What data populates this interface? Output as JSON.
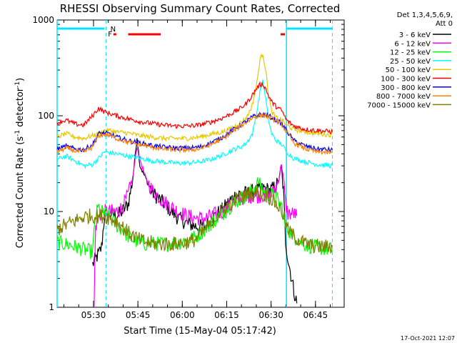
{
  "chart_data": {
    "type": "line",
    "title": "RHESSI Observing Summary Count Rates, Corrected",
    "xlabel": "Start Time (15-May-04 05:17:42)",
    "ylabel_main": "Corrected Count Rate (s",
    "ylabel_sup1": "-1",
    "ylabel_mid": " detector",
    "ylabel_sup2": "-1",
    "ylabel_end": ")",
    "footer_timestamp": "17-Oct-2021 12:07",
    "y_scale": "log",
    "ylim": [
      1,
      1000
    ],
    "xlim_minutes": [
      0,
      97
    ],
    "y_ticks": [
      {
        "v": 1,
        "label": "1"
      },
      {
        "v": 10,
        "label": "10"
      },
      {
        "v": 100,
        "label": "100"
      },
      {
        "v": 1000,
        "label": "1000"
      }
    ],
    "x_ticks": [
      {
        "t": 12.3,
        "label": "05:30"
      },
      {
        "t": 27.3,
        "label": "05:45"
      },
      {
        "t": 42.3,
        "label": "06:00"
      },
      {
        "t": 57.3,
        "label": "06:15"
      },
      {
        "t": 72.3,
        "label": "06:30"
      },
      {
        "t": 87.3,
        "label": "06:45"
      }
    ],
    "legend_header": [
      "Det 1,3,4,5,6,9,",
      "Att 0"
    ],
    "legend_position": "right",
    "flags": [
      {
        "label": "N",
        "color": "#00c8ff",
        "t": 18.0
      },
      {
        "label": "F",
        "color": "#ff0000",
        "t": 17.2
      }
    ],
    "cyan_bars": [
      [
        0,
        16
      ],
      [
        77.5,
        93
      ]
    ],
    "red_bars": [
      [
        19,
        20
      ],
      [
        24,
        35
      ],
      [
        75.5,
        77
      ]
    ],
    "solid_lines": [
      0,
      77.5
    ],
    "dashed_lines": [
      16.5,
      93
    ],
    "series": [
      {
        "name": "3 - 6 keV",
        "color": "#000000",
        "x": [
          12,
          13,
          14,
          15,
          16,
          18,
          20,
          22,
          24,
          25.5,
          27,
          28,
          30,
          32,
          35,
          38,
          41,
          44,
          47,
          50,
          52,
          54,
          56,
          58,
          60,
          62,
          64,
          66,
          68,
          70,
          72,
          73,
          74,
          75,
          75.8,
          76.5,
          77.2,
          78,
          79,
          80,
          81
        ],
        "y": [
          2.8,
          3.2,
          3.6,
          4.2,
          9,
          9.5,
          9.0,
          10,
          12,
          21,
          60,
          30,
          22,
          16,
          13,
          10.5,
          8.5,
          7.5,
          7.0,
          7.0,
          8.0,
          9.5,
          10.5,
          12.5,
          14.5,
          15.5,
          15.5,
          16.0,
          16.5,
          17.5,
          16.5,
          17.5,
          18.5,
          22,
          30,
          16,
          5,
          3.2,
          2.2,
          1.5,
          1.1
        ]
      },
      {
        "name": "6 - 12 keV",
        "color": "#ff00ff",
        "x": [
          12.5,
          13,
          14,
          15,
          16,
          18,
          20,
          22,
          24,
          25.5,
          27,
          28,
          30,
          32,
          35,
          38,
          41,
          44,
          47,
          50,
          52,
          54,
          56,
          58,
          60,
          62,
          64,
          66,
          68,
          70,
          72,
          73,
          74,
          75,
          75.8,
          76.5,
          77.2,
          78,
          79,
          80,
          81
        ],
        "y": [
          1.0,
          7,
          8.5,
          9.5,
          10,
          10,
          10,
          11,
          15,
          22,
          48,
          35,
          22,
          17,
          13.5,
          11.5,
          10,
          9,
          8.5,
          8.5,
          9,
          9.5,
          10,
          11,
          12.5,
          13.5,
          14.5,
          14.5,
          14.5,
          15,
          15,
          16,
          18,
          22,
          32,
          22,
          12,
          9.5,
          9.5,
          9.5,
          9.0
        ]
      },
      {
        "name": "12 - 25 keV",
        "color": "#00ff00",
        "x": [
          0,
          2,
          4,
          6,
          8,
          10,
          12,
          13,
          14,
          15,
          16,
          18,
          20,
          22,
          24,
          26,
          28,
          30,
          32,
          34,
          36,
          38,
          40,
          42,
          44,
          46,
          48,
          50,
          52,
          54,
          56,
          58,
          60,
          62,
          64,
          66,
          68,
          70,
          72,
          74,
          76,
          77,
          78,
          79,
          80,
          82,
          84,
          86,
          88,
          90,
          93
        ],
        "y": [
          4.8,
          4.6,
          4.5,
          4.3,
          4.1,
          3.9,
          3.8,
          9,
          11,
          10,
          9.5,
          8.5,
          7.2,
          6.5,
          5.5,
          5.0,
          4.8,
          4.6,
          4.6,
          4.6,
          4.6,
          4.6,
          4.7,
          4.8,
          5.0,
          5.3,
          5.8,
          6.5,
          7.5,
          8.5,
          9.5,
          11,
          12.5,
          13.5,
          15,
          17,
          20,
          16,
          15,
          14,
          11,
          7,
          6.5,
          6,
          5.5,
          5,
          4.5,
          4.3,
          4.2,
          4.1,
          4.0
        ]
      },
      {
        "name": "25 - 50 keV",
        "color": "#00ffff",
        "x": [
          0,
          3,
          6,
          9,
          12,
          14,
          16,
          18,
          20,
          24,
          28,
          32,
          36,
          40,
          44,
          48,
          52,
          56,
          58,
          60,
          62,
          64,
          66,
          67.5,
          68.5,
          69.5,
          70.5,
          71.5,
          72.5,
          74,
          76,
          77.5,
          80,
          84,
          88,
          93
        ],
        "y": [
          35,
          38,
          34,
          30,
          31,
          36,
          42,
          41,
          40,
          38,
          36,
          34,
          33,
          32,
          32,
          33,
          35,
          39,
          42,
          45,
          47,
          52,
          65,
          110,
          175,
          235,
          150,
          88,
          65,
          55,
          50,
          42,
          36,
          33,
          31,
          30
        ]
      },
      {
        "name": "50 - 100 keV",
        "color": "#e6c800",
        "x": [
          0,
          3,
          6,
          9,
          12,
          14,
          16,
          18,
          20,
          24,
          28,
          32,
          36,
          40,
          44,
          48,
          52,
          56,
          58,
          60,
          62,
          64,
          66,
          67.5,
          68.5,
          69.5,
          70.5,
          71.5,
          72.5,
          74,
          76,
          77.5,
          80,
          84,
          88,
          93
        ],
        "y": [
          60,
          65,
          60,
          58,
          62,
          65,
          70,
          70,
          68,
          66,
          62,
          60,
          58,
          58,
          58,
          60,
          64,
          68,
          72,
          78,
          85,
          95,
          130,
          220,
          380,
          450,
          300,
          160,
          110,
          95,
          90,
          80,
          72,
          68,
          65,
          63
        ]
      },
      {
        "name": "100 - 300 keV",
        "color": "#ff0000",
        "x": [
          0,
          3,
          6,
          9,
          12,
          14,
          16,
          18,
          20,
          24,
          28,
          32,
          36,
          40,
          44,
          48,
          52,
          56,
          58,
          60,
          62,
          64,
          66,
          67.5,
          68.5,
          69.5,
          70.5,
          71.5,
          72.5,
          74,
          76,
          77.5,
          80,
          84,
          88,
          93
        ],
        "y": [
          85,
          90,
          82,
          80,
          100,
          120,
          110,
          105,
          100,
          93,
          87,
          83,
          80,
          78,
          78,
          80,
          86,
          95,
          102,
          110,
          120,
          135,
          165,
          195,
          210,
          215,
          190,
          160,
          140,
          125,
          112,
          90,
          78,
          72,
          70,
          68
        ]
      },
      {
        "name": "300 - 800 keV",
        "color": "#0000ff",
        "x": [
          0,
          3,
          6,
          9,
          12,
          14,
          16,
          18,
          20,
          24,
          28,
          32,
          36,
          40,
          44,
          48,
          52,
          56,
          58,
          60,
          62,
          64,
          66,
          68,
          70,
          72,
          74,
          76,
          77.5,
          80,
          84,
          88,
          93
        ],
        "y": [
          45,
          48,
          45,
          44,
          50,
          65,
          66,
          64,
          60,
          55,
          52,
          49,
          47,
          46,
          46,
          47,
          52,
          60,
          66,
          73,
          80,
          88,
          97,
          102,
          103,
          98,
          90,
          82,
          70,
          55,
          48,
          45,
          44
        ]
      },
      {
        "name": "800 - 7000 keV",
        "color": "#ff8000",
        "x": [
          0,
          3,
          6,
          9,
          12,
          14,
          16,
          18,
          20,
          24,
          28,
          32,
          36,
          40,
          44,
          48,
          52,
          56,
          58,
          60,
          62,
          64,
          66,
          68,
          70,
          72,
          74,
          76,
          77.5,
          80,
          84,
          88,
          93
        ],
        "y": [
          42,
          46,
          43,
          42,
          47,
          62,
          64,
          62,
          58,
          53,
          50,
          47,
          45,
          44,
          44,
          45,
          50,
          58,
          64,
          71,
          78,
          86,
          95,
          100,
          101,
          96,
          88,
          80,
          68,
          52,
          45,
          42,
          41
        ]
      },
      {
        "name": "7000 - 15000 keV",
        "color": "#808000",
        "x": [
          0,
          2,
          4,
          6,
          8,
          10,
          12,
          14,
          16,
          18,
          20,
          22,
          24,
          26,
          28,
          30,
          32,
          34,
          36,
          38,
          40,
          42,
          44,
          46,
          48,
          50,
          52,
          54,
          56,
          58,
          60,
          62,
          64,
          66,
          68,
          70,
          72,
          74,
          76,
          77,
          78,
          80,
          82,
          84,
          86,
          88,
          90,
          93
        ],
        "y": [
          6.5,
          7.0,
          7.5,
          8.0,
          8.5,
          9.0,
          9.0,
          9.0,
          9.0,
          8.5,
          8.0,
          7.0,
          6.0,
          5.5,
          5.0,
          4.8,
          4.7,
          4.6,
          4.6,
          4.6,
          4.6,
          4.7,
          4.8,
          5.0,
          5.5,
          6.5,
          7.5,
          9.0,
          10.5,
          11.5,
          13.0,
          14.0,
          15.0,
          15.5,
          16.0,
          15.0,
          14.0,
          12.0,
          10.0,
          8.0,
          6.5,
          5.5,
          5.0,
          4.6,
          4.4,
          4.3,
          4.3,
          4.3
        ]
      }
    ]
  }
}
